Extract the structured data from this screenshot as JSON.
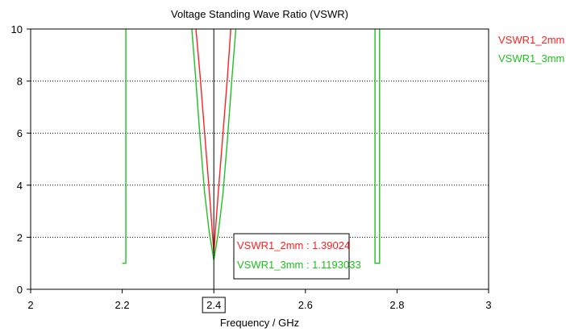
{
  "chart_data": {
    "type": "line",
    "title": "Voltage Standing Wave Ratio (VSWR)",
    "xlabel": "Frequency / GHz",
    "ylabel": "",
    "xlim": [
      2,
      3
    ],
    "ylim": [
      0,
      10
    ],
    "x_ticks": [
      "2",
      "2.2",
      "2.4",
      "2.6",
      "2.8",
      "3"
    ],
    "y_ticks": [
      "0",
      "2",
      "4",
      "6",
      "8",
      "10"
    ],
    "grid": true,
    "legend_position": "right",
    "marker": {
      "x": 2.4,
      "x_label": "2.4"
    },
    "series": [
      {
        "name": "VSWR1_2mm",
        "color": "#ff2020",
        "marker_label": "VSWR1_2mm : 1.39024",
        "x": [
          2.361,
          2.37,
          2.38,
          2.39,
          2.395,
          2.4,
          2.405,
          2.41,
          2.42,
          2.43,
          2.437
        ],
        "y": [
          10,
          8.2,
          6.0,
          3.8,
          2.6,
          1.39,
          2.6,
          3.8,
          6.0,
          8.2,
          10
        ]
      },
      {
        "name": "VSWR1_3mm",
        "color": "#20c020",
        "marker_label": "VSWR1_3mm : 1.1193033",
        "x": [
          2.2,
          2.2,
          2.208,
          2.208,
          null,
          2.352,
          2.36,
          2.37,
          2.38,
          2.39,
          2.4,
          2.41,
          2.42,
          2.43,
          2.44,
          2.448,
          null,
          2.752,
          2.752,
          2.762,
          2.762
        ],
        "y": [
          1.0,
          1.0,
          1.0,
          10,
          null,
          10,
          8.2,
          5.8,
          3.7,
          2.2,
          1.12,
          2.2,
          3.7,
          5.8,
          8.2,
          10,
          null,
          10,
          1.0,
          1.0,
          10
        ]
      }
    ]
  }
}
